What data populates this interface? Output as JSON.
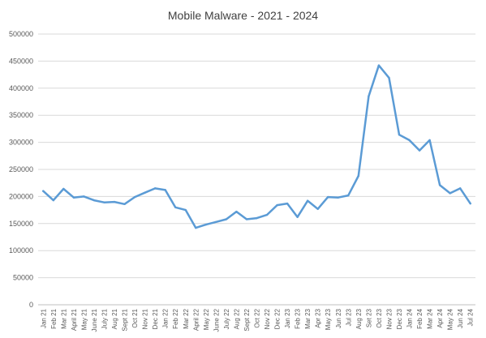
{
  "chart_data": {
    "type": "line",
    "title": "Mobile Malware - 2021 - 2024",
    "xlabel": "",
    "ylabel": "",
    "ylim": [
      0,
      500000
    ],
    "yticks": [
      0,
      50000,
      100000,
      150000,
      200000,
      250000,
      300000,
      350000,
      400000,
      450000,
      500000
    ],
    "ytick_labels": [
      "0",
      "50000",
      "100000",
      "150000",
      "200000",
      "250000",
      "300000",
      "350000",
      "400000",
      "450000",
      "500000"
    ],
    "grid": true,
    "legend": "none",
    "colors": {
      "line": "#5b9bd5",
      "grid": "#d9d9d9",
      "text": "#595959"
    },
    "categories": [
      "Jan 21",
      "Feb 21",
      "Mar 21",
      "April 21",
      "May 21",
      "June 21",
      "July 21",
      "Aug 21",
      "Sept 21",
      "Oct 21",
      "Nov 21",
      "Dec 21",
      "Jan 22",
      "Feb 22",
      "Mar 22",
      "April 22",
      "May 22",
      "June 22",
      "July 22",
      "Aug 22",
      "Sept 22",
      "Oct 22",
      "Nov 22",
      "Dec 22",
      "Jan 23",
      "Feb 23",
      "Mar 23",
      "Apr 23",
      "May 23",
      "Jun 23",
      "Jul 23",
      "Aug 23",
      "Set 23",
      "Oct 23",
      "Nov 23",
      "Dec 23",
      "Jan 24",
      "Feb 24",
      "Mar 24",
      "Apr 24",
      "May 24",
      "Jun 24",
      "Jul 24"
    ],
    "series": [
      {
        "values": [
          210000,
          193000,
          214000,
          198000,
          200000,
          193000,
          189000,
          190000,
          186000,
          199000,
          207000,
          215000,
          212000,
          180000,
          175000,
          142000,
          148000,
          153000,
          158000,
          172000,
          158000,
          160000,
          166000,
          184000,
          187000,
          162000,
          192000,
          177000,
          199000,
          198000,
          202000,
          238000,
          385000,
          442000,
          419000,
          314000,
          304000,
          285000,
          304000,
          221000,
          206000,
          215000,
          187000
        ]
      }
    ]
  }
}
